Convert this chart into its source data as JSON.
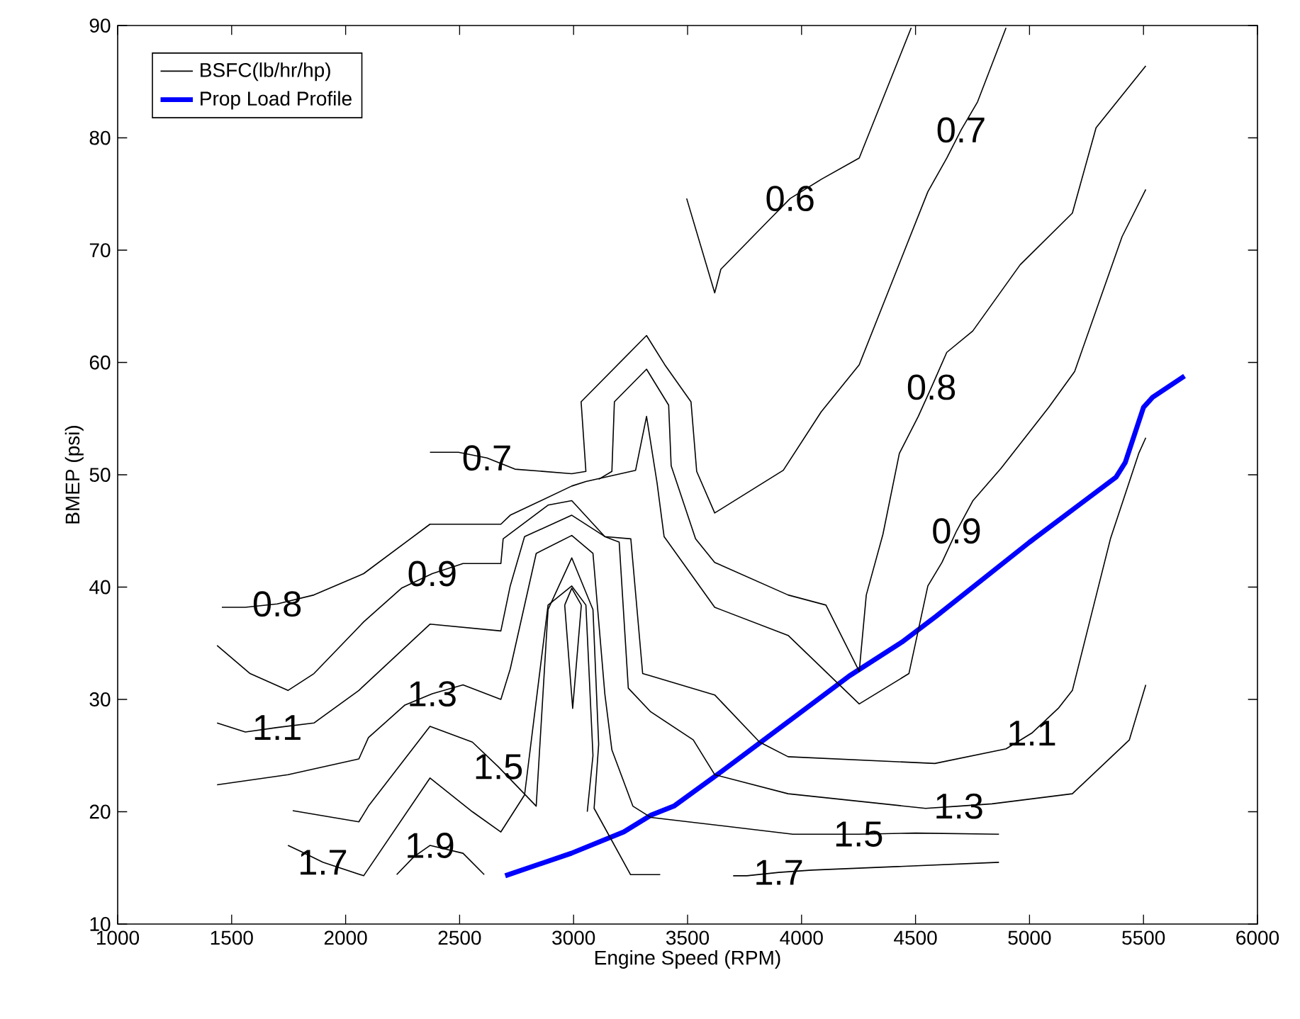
{
  "chart_data": {
    "type": "line",
    "xlabel": "Engine Speed (RPM)",
    "ylabel": "BMEP (psi)",
    "xlim": [
      1000,
      6000
    ],
    "ylim": [
      10,
      90
    ],
    "xticks": [
      1000,
      1500,
      2000,
      2500,
      3000,
      3500,
      4000,
      4500,
      5000,
      5500,
      6000
    ],
    "yticks": [
      10,
      20,
      30,
      40,
      50,
      60,
      70,
      80,
      90
    ],
    "legend": "top left",
    "series": [
      {
        "name": "BSFC(lb/hr/hp)",
        "color": "#000000",
        "x": [
          2370,
          2495,
          2620,
          2743,
          2992,
          3054,
          3033,
          3320,
          3400,
          3515,
          3540,
          3619,
          3920,
          4086,
          4253,
          4554,
          4637,
          4700,
          4772,
          4897
        ],
        "values": [
          52.0,
          52.0,
          51.5,
          50.5,
          50.1,
          50.3,
          56.5,
          62.4,
          59.8,
          56.5,
          50.3,
          46.6,
          50.4,
          55.6,
          59.8,
          75.2,
          78.2,
          80.7,
          83.2,
          89.8
        ]
      },
      {
        "name": "Prop Load Profile",
        "color": "#0000ff",
        "x": [
          2700,
          2990,
          3220,
          3340,
          3440,
          3650,
          3960,
          4210,
          4440,
          4590,
          5000,
          5380,
          5420,
          5500,
          5540,
          5680
        ],
        "values": [
          14.3,
          16.3,
          18.2,
          19.7,
          20.5,
          23.6,
          28.3,
          32.1,
          35.1,
          37.4,
          44.0,
          49.8,
          51.1,
          56.0,
          56.9,
          58.8
        ]
      },
      {
        "color": "#000000",
        "x": [
          3496,
          3619,
          3646,
          3868,
          3950,
          4086,
          4253,
          4481
        ],
        "values": [
          74.6,
          66.2,
          68.3,
          72.9,
          74.6,
          76.3,
          78.2,
          89.8
        ]
      },
      {
        "color": "#000000",
        "x": [
          3110,
          3168,
          3179,
          3320,
          3417,
          3428,
          3535,
          3619,
          3941,
          4107,
          4253,
          4284,
          4357,
          4429,
          4512,
          4570,
          4637,
          4751,
          4959,
          5188,
          5292,
          5510
        ],
        "values": [
          49.6,
          50.3,
          56.5,
          59.4,
          56.2,
          50.8,
          44.3,
          42.2,
          39.3,
          38.4,
          32.5,
          39.3,
          44.7,
          51.9,
          55.2,
          57.8,
          60.9,
          62.8,
          68.7,
          73.3,
          80.9,
          86.4
        ]
      },
      {
        "color": "#000000",
        "x": [
          1457,
          1560,
          1700,
          1861,
          2079,
          2370,
          2681,
          2722,
          2992,
          3054,
          3272,
          3320,
          3366,
          3397,
          3619,
          3941,
          4253,
          4471,
          4554,
          4616,
          4680,
          4752,
          4876,
          5084,
          5198,
          5406,
          5510
        ],
        "values": [
          38.2,
          38.2,
          38.5,
          39.3,
          41.2,
          45.6,
          45.6,
          46.4,
          49.0,
          49.4,
          50.4,
          55.2,
          49.3,
          44.5,
          38.2,
          35.7,
          29.6,
          32.3,
          40.1,
          42.2,
          45.0,
          47.7,
          50.6,
          56.0,
          59.2,
          71.2,
          75.4
        ]
      },
      {
        "color": "#000000",
        "x": [
          1436,
          1581,
          1747,
          1861,
          2079,
          2245,
          2380,
          2515,
          2681,
          2691,
          2888,
          2992,
          3137,
          3251,
          3303,
          3338,
          3619,
          3816,
          3941,
          4585,
          4897,
          5010,
          5126,
          5188,
          5282,
          5355,
          5479,
          5510
        ],
        "values": [
          34.8,
          32.3,
          30.8,
          32.3,
          36.9,
          39.9,
          41.2,
          42.1,
          42.1,
          44.3,
          47.3,
          47.7,
          44.5,
          44.3,
          32.3,
          32.1,
          30.4,
          26.2,
          24.9,
          24.3,
          25.6,
          27.0,
          29.2,
          30.8,
          38.4,
          44.3,
          51.9,
          53.3
        ]
      },
      {
        "color": "#000000",
        "x": [
          1436,
          1560,
          1700,
          1861,
          2058,
          2370,
          2681,
          2722,
          2785,
          2992,
          3137,
          3200,
          3240,
          3338,
          3525,
          3619,
          3941,
          4544,
          4690,
          4835,
          5188,
          5438,
          5510
        ],
        "values": [
          27.9,
          27.1,
          27.5,
          27.9,
          30.8,
          36.7,
          36.1,
          40.1,
          44.5,
          46.4,
          44.5,
          44.0,
          31.0,
          28.9,
          26.4,
          23.3,
          21.6,
          20.3,
          20.5,
          20.7,
          21.6,
          26.4,
          31.3
        ]
      },
      {
        "color": "#000000",
        "x": [
          1436,
          1747,
          2058,
          2100,
          2260,
          2380,
          2515,
          2681,
          2722,
          2836,
          2992,
          3085,
          3137,
          3168,
          3260,
          3338,
          3962,
          4107,
          4250,
          4500,
          4866
        ],
        "values": [
          22.4,
          23.3,
          24.7,
          26.6,
          29.5,
          30.5,
          31.3,
          30.0,
          32.7,
          43.0,
          44.6,
          43.0,
          30.5,
          25.5,
          20.5,
          19.5,
          18.0,
          18.0,
          18.0,
          18.1,
          18.0
        ]
      },
      {
        "color": "#000000",
        "x": [
          1768,
          2058,
          2100,
          2370,
          2556,
          2670,
          2836,
          2888,
          2992,
          3085,
          3110,
          3090,
          3250,
          3380
        ],
        "values": [
          20.1,
          19.1,
          20.5,
          27.6,
          26.2,
          24.0,
          20.5,
          38.0,
          42.6,
          38.0,
          26.0,
          20.3,
          14.4,
          14.4
        ]
      },
      {
        "color": "#000000",
        "x": [
          1747,
          1800,
          1900,
          2079,
          2370,
          2556,
          2681,
          2785,
          2888,
          2992,
          3054,
          3085,
          3060
        ],
        "values": [
          17.0,
          16.5,
          15.5,
          14.3,
          23.0,
          20.0,
          18.2,
          21.5,
          38.4,
          40.1,
          38.4,
          25.0,
          20.0
        ]
      },
      {
        "color": "#000000",
        "x": [
          2961,
          2992,
          3034
        ],
        "values": [
          38.4,
          39.9,
          38.4
        ]
      },
      {
        "color": "#000000",
        "x": [
          2961,
          2996,
          3034
        ],
        "values": [
          38.4,
          29.2,
          38.4
        ]
      },
      {
        "color": "#000000",
        "x": [
          2224,
          2300,
          2370,
          2515,
          2608
        ],
        "values": [
          14.4,
          16.0,
          17.0,
          16.3,
          14.4
        ]
      },
      {
        "color": "#000000",
        "x": [
          3700,
          3760,
          3900,
          4045,
          4866
        ],
        "values": [
          14.3,
          14.3,
          14.6,
          14.8,
          15.5
        ]
      }
    ],
    "annotations": [
      {
        "text": "0.6",
        "x": 3950,
        "y": 74.6
      },
      {
        "text": "0.7",
        "x": 4700,
        "y": 80.7
      },
      {
        "text": "0.7",
        "x": 2620,
        "y": 51.5
      },
      {
        "text": "0.8",
        "x": 1700,
        "y": 38.5
      },
      {
        "text": "0.8",
        "x": 4570,
        "y": 57.8
      },
      {
        "text": "0.9",
        "x": 2380,
        "y": 41.2
      },
      {
        "text": "0.9",
        "x": 4680,
        "y": 45.0
      },
      {
        "text": "1.1",
        "x": 1700,
        "y": 27.5
      },
      {
        "text": "1.1",
        "x": 5010,
        "y": 27.0
      },
      {
        "text": "1.3",
        "x": 2380,
        "y": 30.5
      },
      {
        "text": "1.3",
        "x": 4690,
        "y": 20.5
      },
      {
        "text": "1.5",
        "x": 2670,
        "y": 24.0
      },
      {
        "text": "1.5",
        "x": 4250,
        "y": 18.0
      },
      {
        "text": "1.7",
        "x": 1900,
        "y": 15.5
      },
      {
        "text": "1.7",
        "x": 3900,
        "y": 14.6
      },
      {
        "text": "1.9",
        "x": 2370,
        "y": 17.0
      }
    ]
  }
}
